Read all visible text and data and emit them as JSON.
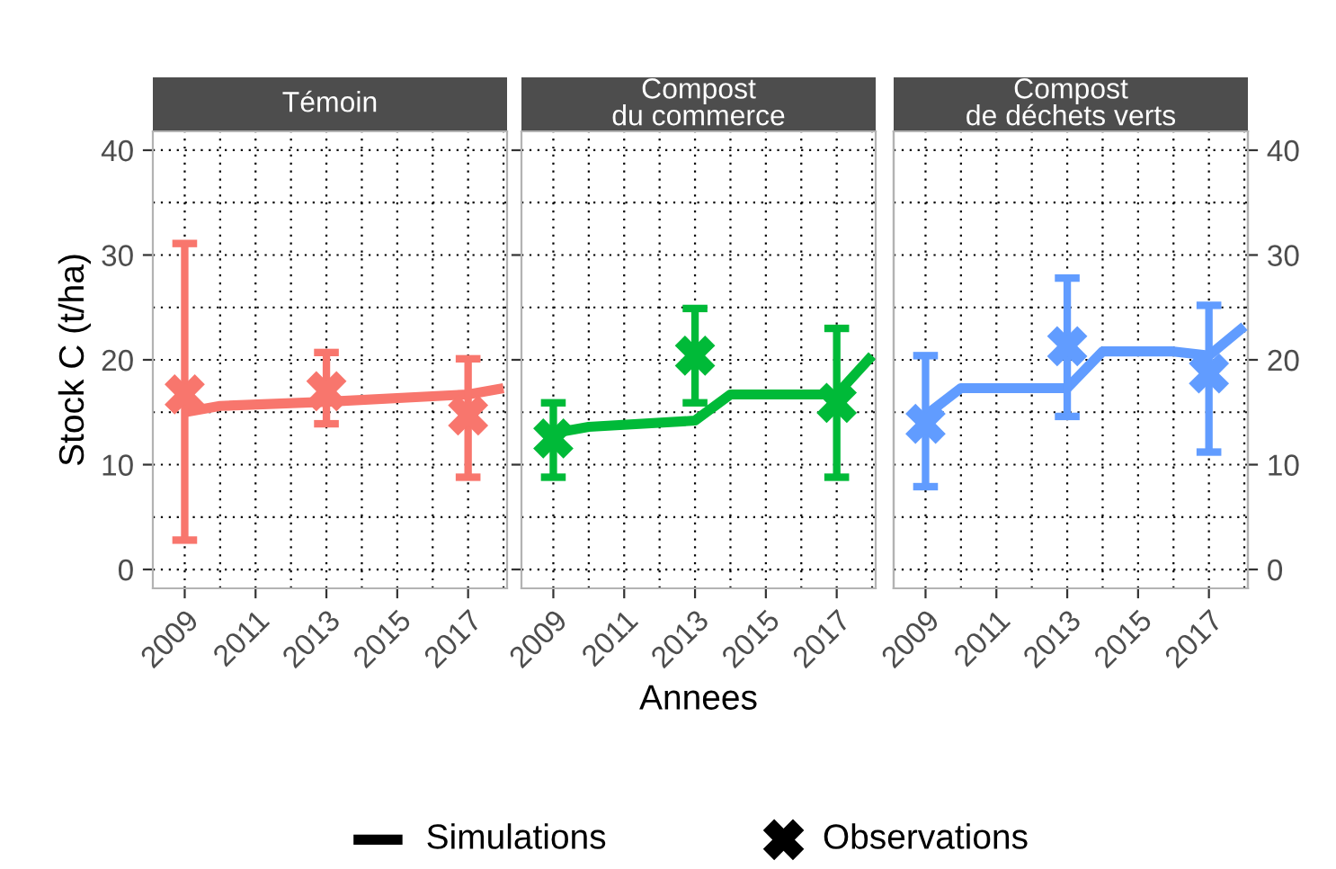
{
  "chart_data": [
    {
      "type": "line",
      "title": "Témoin",
      "ylabel": "Stock C (t/ha)",
      "xlim": [
        2008.1,
        2018.1
      ],
      "xticks": [
        2009,
        2011,
        2013,
        2015,
        2017
      ],
      "ylim": [
        -1.8,
        41.8
      ],
      "yticks": [
        0,
        10,
        20,
        30,
        40
      ],
      "grid": true,
      "series": [
        {
          "color": "#f8766d",
          "marker": "none",
          "x": [
            2009,
            2010,
            2013,
            2017,
            2018
          ],
          "values": [
            15.0,
            15.6,
            16.0,
            16.7,
            17.3
          ]
        },
        {
          "type": "scatter",
          "color": "#f8766d",
          "marker": "cross",
          "x": [
            2009,
            2013,
            2017
          ],
          "values": [
            16.7,
            17.0,
            14.7
          ],
          "errors": [
            [
              2.8,
              31.1
            ],
            [
              13.9,
              20.7
            ],
            [
              8.8,
              20.1
            ]
          ]
        }
      ]
    },
    {
      "type": "line",
      "title": "Compost\ndu commerce",
      "xlabel": "Annees",
      "xlim": [
        2008.1,
        2018.1
      ],
      "xticks": [
        2009,
        2011,
        2013,
        2015,
        2017
      ],
      "ylim": [
        -1.8,
        41.8
      ],
      "yticks": [
        0,
        10,
        20,
        30,
        40
      ],
      "grid": true,
      "tick_labels": "x",
      "annotations": [
        "Simulations",
        "Observations"
      ],
      "series": [
        {
          "color": "#00ba38",
          "marker": "none",
          "x": [
            2009,
            2010,
            2013,
            2014,
            2017,
            2018
          ],
          "values": [
            13.0,
            13.6,
            14.2,
            16.7,
            16.7,
            20.4
          ]
        },
        {
          "type": "scatter",
          "color": "#00ba38",
          "marker": "cross",
          "x": [
            2009,
            2013,
            2017
          ],
          "values": [
            12.5,
            20.4,
            15.9
          ],
          "errors": [
            [
              8.8,
              15.9
            ],
            [
              15.9,
              24.9
            ],
            [
              8.8,
              23.0
            ]
          ]
        }
      ]
    },
    {
      "type": "line",
      "title": "Compost\nde déchets verts",
      "xlim": [
        2008.1,
        2018.1
      ],
      "xticks": [
        2009,
        2011,
        2013,
        2015,
        2017
      ],
      "y2lim": [
        -1.8,
        41.8
      ],
      "y2ticks": [
        0,
        10,
        20,
        30,
        40
      ],
      "grid": true,
      "series": [
        {
          "axis": "y2",
          "color": "#619cff",
          "marker": "none",
          "x": [
            2009,
            2010,
            2013,
            2014,
            2016,
            2017,
            2018
          ],
          "values": [
            14.7,
            17.3,
            17.3,
            20.8,
            20.8,
            20.4,
            23.2
          ]
        },
        {
          "type": "scatter",
          "axis": "y2",
          "color": "#619cff",
          "marker": "cross",
          "x": [
            2009,
            2013,
            2017
          ],
          "values": [
            13.9,
            21.3,
            18.7
          ],
          "errors": [
            [
              7.9,
              20.4
            ],
            [
              14.6,
              27.8
            ],
            [
              11.2,
              25.2
            ]
          ]
        }
      ]
    }
  ]
}
